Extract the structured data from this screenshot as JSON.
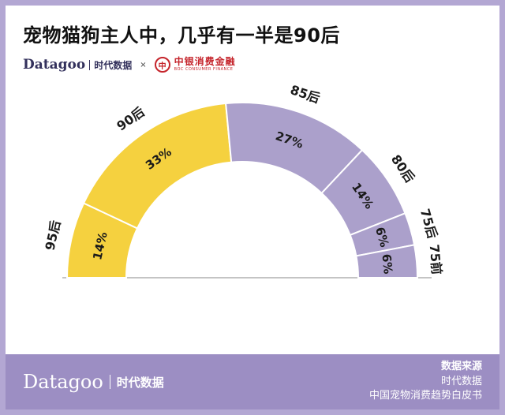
{
  "header": {
    "title": "宠物猫狗主人中，几乎有一半是90后",
    "brand": {
      "datagoo": "Datagoo",
      "datagoo_cn": "时代数据",
      "cross": "×",
      "boc_glyph": "中",
      "boc_name": "中银消费金融",
      "boc_sub": "BOC CONSUMER FINANCE"
    }
  },
  "chart_data": {
    "type": "pie",
    "variant": "semi-circle-donut",
    "title": "宠物猫狗主人中，几乎有一半是90后",
    "categories": [
      "95后",
      "90后",
      "85后",
      "80后",
      "75后",
      "75前"
    ],
    "values": [
      14,
      33,
      27,
      14,
      6,
      6
    ],
    "labels": [
      "14%",
      "33%",
      "27%",
      "14%",
      "6%",
      "6%"
    ],
    "colors": [
      "#f5d13f",
      "#f5d13f",
      "#aba0cb",
      "#aba0cb",
      "#aba0cb",
      "#aba0cb"
    ],
    "unit": "%",
    "start_angle_deg": 180,
    "end_angle_deg": 0,
    "legend": "none",
    "baseline_axis": true
  },
  "footer": {
    "brand": "Datagoo",
    "brand_cn": "时代数据",
    "source_label": "数据来源",
    "source_lines": [
      "时代数据",
      "中国宠物消费趋势白皮书"
    ]
  },
  "theme": {
    "frame_color": "#b3a7d3",
    "footer_bg": "#9c8ec3",
    "yellow": "#f5d13f",
    "purple": "#aba0cb",
    "boc_red": "#c5242b",
    "brand_navy": "#33315c"
  }
}
